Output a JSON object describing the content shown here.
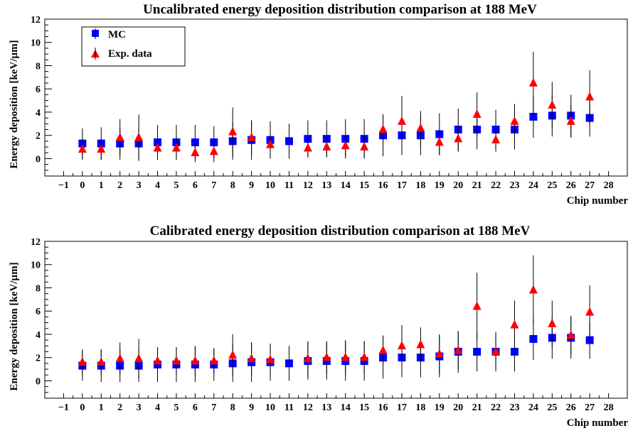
{
  "chart_data": [
    {
      "type": "scatter",
      "title": "Uncalibrated energy deposition distribution comparison at 188 MeV",
      "xlabel": "Chip number",
      "ylabel": "Energy deposition [keV/µm]",
      "xlim": [
        -2,
        29
      ],
      "ylim": [
        -1.5,
        12
      ],
      "xticks": [
        -1,
        0,
        1,
        2,
        3,
        4,
        5,
        6,
        7,
        8,
        9,
        10,
        11,
        12,
        13,
        14,
        15,
        16,
        17,
        18,
        19,
        20,
        21,
        22,
        23,
        24,
        25,
        26,
        27,
        28
      ],
      "yticks": [
        0,
        2,
        4,
        6,
        8,
        10,
        12
      ],
      "legend_position": "top-left",
      "grid": false,
      "series": [
        {
          "name": "MC",
          "marker": "square",
          "color": "#0000ff",
          "x": [
            0,
            1,
            2,
            3,
            4,
            5,
            6,
            7,
            8,
            9,
            10,
            11,
            12,
            13,
            14,
            15,
            16,
            17,
            18,
            19,
            20,
            21,
            22,
            23,
            24,
            25,
            26,
            27
          ],
          "y": [
            1.3,
            1.3,
            1.3,
            1.3,
            1.4,
            1.4,
            1.4,
            1.4,
            1.5,
            1.6,
            1.6,
            1.5,
            1.7,
            1.7,
            1.7,
            1.7,
            2.0,
            2.0,
            2.0,
            2.1,
            2.5,
            2.5,
            2.5,
            2.5,
            3.6,
            3.7,
            3.7,
            3.5
          ],
          "err": [
            1.3,
            1.4,
            1.4,
            1.4,
            1.5,
            1.5,
            1.5,
            1.4,
            1.6,
            1.7,
            1.6,
            1.5,
            1.6,
            1.6,
            1.7,
            1.7,
            1.8,
            1.7,
            1.7,
            1.8,
            1.8,
            1.7,
            1.7,
            1.7,
            1.8,
            1.8,
            1.8,
            1.6
          ]
        },
        {
          "name": "Exp. data",
          "marker": "triangle",
          "color": "#ff0000",
          "x": [
            0,
            1,
            2,
            3,
            4,
            5,
            6,
            7,
            8,
            9,
            10,
            12,
            13,
            14,
            15,
            16,
            17,
            18,
            19,
            20,
            21,
            22,
            23,
            24,
            25,
            26,
            27
          ],
          "y": [
            0.8,
            0.8,
            1.8,
            1.8,
            0.9,
            0.9,
            0.5,
            0.6,
            2.3,
            1.8,
            1.2,
            0.9,
            1.0,
            1.1,
            1.0,
            2.5,
            3.2,
            2.6,
            1.4,
            1.7,
            3.8,
            1.6,
            3.2,
            6.5,
            4.6,
            3.2,
            5.3
          ],
          "err": [
            0.9,
            0.9,
            1.6,
            2.0,
            1.0,
            1.0,
            0.8,
            0.9,
            2.1,
            1.5,
            1.1,
            0.8,
            0.8,
            0.9,
            0.9,
            1.3,
            2.2,
            1.5,
            1.1,
            1.1,
            1.9,
            1.0,
            1.5,
            2.7,
            2.0,
            1.4,
            2.3
          ]
        }
      ]
    },
    {
      "type": "scatter",
      "title": "Calibrated energy deposition distribution comparison at 188 MeV",
      "xlabel": "Chip number",
      "ylabel": "Energy deposition [keV/µm]",
      "xlim": [
        -2,
        29
      ],
      "ylim": [
        -1.5,
        12
      ],
      "xticks": [
        -1,
        0,
        1,
        2,
        3,
        4,
        5,
        6,
        7,
        8,
        9,
        10,
        11,
        12,
        13,
        14,
        15,
        16,
        17,
        18,
        19,
        20,
        21,
        22,
        23,
        24,
        25,
        26,
        27,
        28
      ],
      "yticks": [
        0,
        2,
        4,
        6,
        8,
        10,
        12
      ],
      "grid": false,
      "series": [
        {
          "name": "MC",
          "marker": "square",
          "color": "#0000ff",
          "x": [
            0,
            1,
            2,
            3,
            4,
            5,
            6,
            7,
            8,
            9,
            10,
            11,
            12,
            13,
            14,
            15,
            16,
            17,
            18,
            19,
            20,
            21,
            22,
            23,
            24,
            25,
            26,
            27
          ],
          "y": [
            1.3,
            1.3,
            1.3,
            1.3,
            1.4,
            1.4,
            1.4,
            1.4,
            1.5,
            1.6,
            1.6,
            1.5,
            1.7,
            1.7,
            1.7,
            1.7,
            2.0,
            2.0,
            2.0,
            2.1,
            2.5,
            2.5,
            2.5,
            2.5,
            3.6,
            3.7,
            3.7,
            3.5
          ],
          "err": [
            1.3,
            1.4,
            1.4,
            1.4,
            1.5,
            1.5,
            1.5,
            1.4,
            1.6,
            1.7,
            1.6,
            1.5,
            1.6,
            1.6,
            1.7,
            1.7,
            1.8,
            1.7,
            1.7,
            1.8,
            1.8,
            1.7,
            1.7,
            1.7,
            1.8,
            1.8,
            1.8,
            1.6
          ]
        },
        {
          "name": "Exp. data",
          "marker": "triangle",
          "color": "#ff0000",
          "x": [
            0,
            1,
            2,
            3,
            4,
            5,
            6,
            7,
            8,
            9,
            10,
            12,
            13,
            14,
            15,
            16,
            17,
            18,
            19,
            20,
            21,
            22,
            23,
            24,
            25,
            26,
            27
          ],
          "y": [
            1.6,
            1.6,
            1.9,
            1.9,
            1.7,
            1.7,
            1.7,
            1.7,
            2.2,
            1.9,
            1.8,
            1.9,
            2.0,
            2.0,
            2.0,
            2.6,
            3.0,
            3.1,
            2.3,
            2.6,
            6.4,
            2.5,
            4.8,
            7.8,
            4.9,
            3.9,
            5.9
          ],
          "err": [
            1.1,
            1.1,
            1.4,
            1.7,
            1.1,
            1.2,
            1.3,
            1.1,
            1.8,
            1.4,
            1.4,
            1.5,
            1.4,
            1.5,
            1.4,
            1.3,
            1.8,
            1.5,
            1.7,
            1.6,
            2.9,
            1.5,
            2.1,
            3.0,
            2.0,
            1.7,
            2.3
          ]
        }
      ]
    }
  ]
}
